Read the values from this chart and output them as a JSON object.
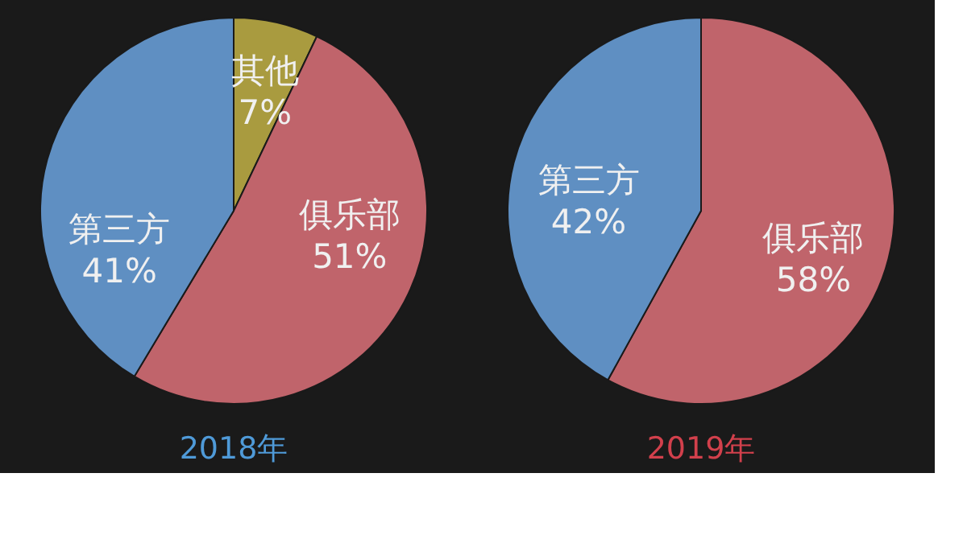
{
  "chart_data": [
    {
      "type": "pie",
      "title": "2018年",
      "categories": [
        "其他",
        "俱乐部",
        "第三方"
      ],
      "values": [
        7,
        51,
        41
      ],
      "colors": [
        "#a99b3f",
        "#c0646b",
        "#5f8fc2"
      ],
      "value_labels": [
        "7%",
        "51%",
        "41%"
      ],
      "legend": false
    },
    {
      "type": "pie",
      "title": "2019年",
      "categories": [
        "俱乐部",
        "第三方"
      ],
      "values": [
        58,
        42
      ],
      "colors": [
        "#c0646b",
        "#5f8fc2"
      ],
      "value_labels": [
        "58%",
        "42%"
      ],
      "legend": false
    }
  ]
}
